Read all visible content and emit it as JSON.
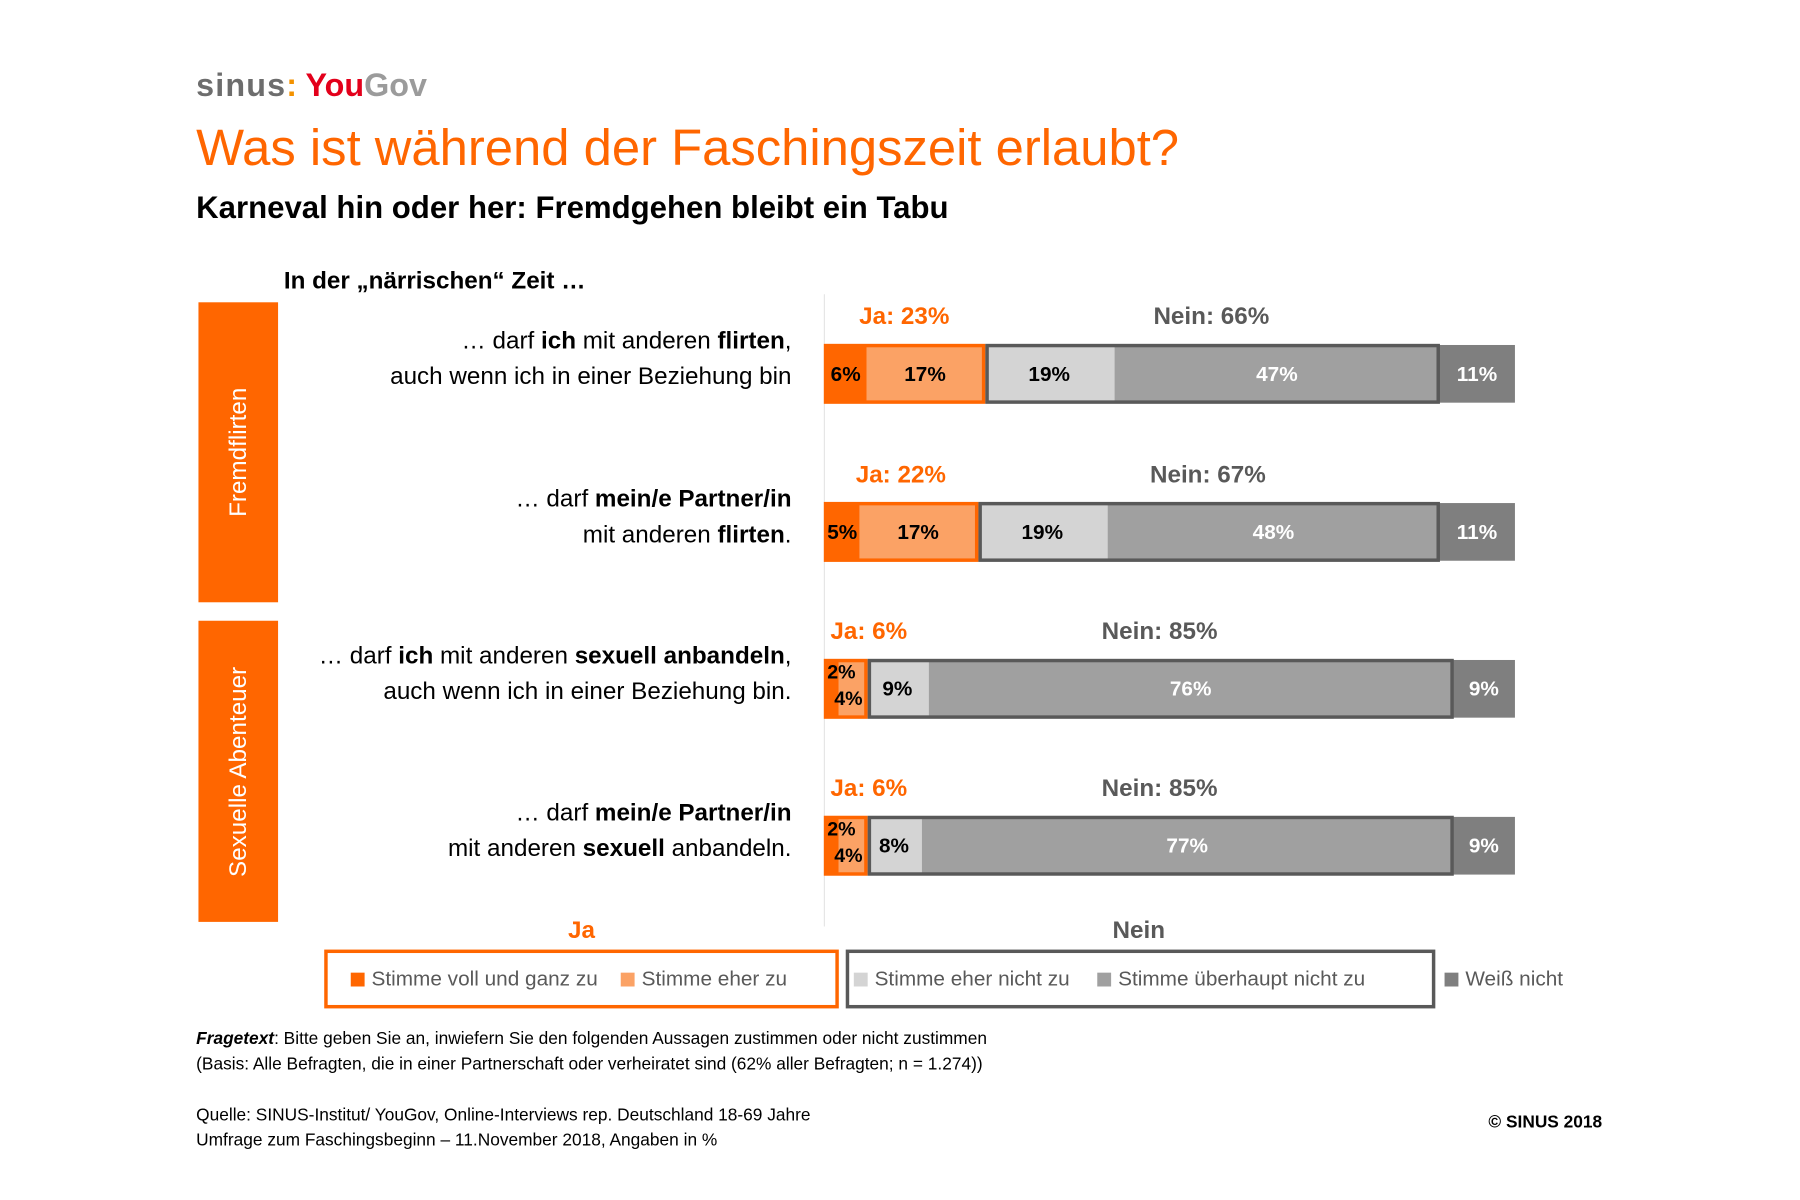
{
  "logo": {
    "sinus": "sinus",
    "sep": ":",
    "you": "You",
    "gov": "Gov"
  },
  "title": "Was ist während der Faschingszeit erlaubt?",
  "subtitle": "Karneval hin oder her: Fremdgehen bleibt ein Tabu",
  "intro": "In der „närrischen“ Zeit …",
  "categories": [
    "Fremdflirten",
    "Sexuelle Abenteuer"
  ],
  "colors": {
    "voll": "#ff6600",
    "eher": "#fba265",
    "eher_nicht": "#d4d4d4",
    "ueberhaupt_nicht": "#a0a0a0",
    "weiss_nicht": "#7f7f7f",
    "ja_border": "#ff6600",
    "nein_border": "#595959"
  },
  "chart_data": {
    "type": "bar",
    "orientation": "horizontal-stacked",
    "unit": "%",
    "categories": [
      "… darf ich mit anderen flirten, auch wenn ich in einer Beziehung bin",
      "… darf mein/e Partner/in mit anderen flirten.",
      "… darf ich mit anderen sexuell anbandeln, auch wenn ich in einer Beziehung bin.",
      "… darf mein/e Partner/in mit anderen sexuell anbandeln."
    ],
    "series": [
      {
        "name": "Stimme voll und ganz zu",
        "values": [
          6,
          5,
          2,
          2
        ]
      },
      {
        "name": "Stimme eher zu",
        "values": [
          17,
          17,
          4,
          4
        ]
      },
      {
        "name": "Stimme eher nicht zu",
        "values": [
          19,
          19,
          9,
          8
        ]
      },
      {
        "name": "Stimme überhaupt nicht zu",
        "values": [
          47,
          48,
          76,
          77
        ]
      },
      {
        "name": "Weiß nicht",
        "values": [
          11,
          11,
          9,
          9
        ]
      }
    ],
    "totals": {
      "ja": [
        "Ja: 23%",
        "Ja: 22%",
        "Ja: 6%",
        "Ja: 6%"
      ],
      "nein": [
        "Nein: 66%",
        "Nein: 67%",
        "Nein: 85%",
        "Nein: 85%"
      ]
    },
    "labels": [
      [
        "6%",
        "17%",
        "19%",
        "47%",
        "11%"
      ],
      [
        "5%",
        "17%",
        "19%",
        "48%",
        "11%"
      ],
      [
        "2%",
        "4%",
        "9%",
        "76%",
        "9%"
      ],
      [
        "2%",
        "4%",
        "8%",
        "77%",
        "9%"
      ]
    ],
    "legend": {
      "ja_title": "Ja",
      "nein_title": "Nein",
      "position": "bottom"
    }
  },
  "questions": [
    [
      [
        {
          "t": "… darf ",
          "b": false
        },
        {
          "t": "ich",
          "b": true
        },
        {
          "t": " mit anderen ",
          "b": false
        },
        {
          "t": "flirten",
          "b": true
        },
        {
          "t": ",",
          "b": false
        }
      ],
      [
        {
          "t": "auch wenn ich in einer Beziehung bin",
          "b": false
        }
      ]
    ],
    [
      [
        {
          "t": "… darf ",
          "b": false
        },
        {
          "t": "mein/e Partner/in",
          "b": true
        }
      ],
      [
        {
          "t": "mit anderen ",
          "b": false
        },
        {
          "t": "flirten",
          "b": true
        },
        {
          "t": ".",
          "b": false
        }
      ]
    ],
    [
      [
        {
          "t": "… darf ",
          "b": false
        },
        {
          "t": "ich",
          "b": true
        },
        {
          "t": " mit anderen ",
          "b": false
        },
        {
          "t": "sexuell anbandeln",
          "b": true
        },
        {
          "t": ",",
          "b": false
        }
      ],
      [
        {
          "t": "auch wenn ich in einer Beziehung bin.",
          "b": false
        }
      ]
    ],
    [
      [
        {
          "t": "… darf ",
          "b": false
        },
        {
          "t": "mein/e Partner/in",
          "b": true
        }
      ],
      [
        {
          "t": "mit anderen ",
          "b": false
        },
        {
          "t": "sexuell",
          "b": true
        },
        {
          "t": " anbandeln.",
          "b": false
        }
      ]
    ]
  ],
  "footer": {
    "fragetext_label": "Fragetext",
    "fragetext": ": Bitte geben Sie an, inwiefern Sie den folgenden Aussagen zustimmen oder nicht zustimmen",
    "basis": "(Basis: Alle Befragten, die in einer Partnerschaft oder verheiratet sind (62% aller Befragten; n = 1.274))",
    "quelle": "Quelle: SINUS-Institut/ YouGov, Online-Interviews rep. Deutschland 18-69 Jahre",
    "umfrage": "Umfrage zum Faschingsbeginn – 11.November 2018, Angaben in %",
    "copyright": "© SINUS 2018"
  }
}
